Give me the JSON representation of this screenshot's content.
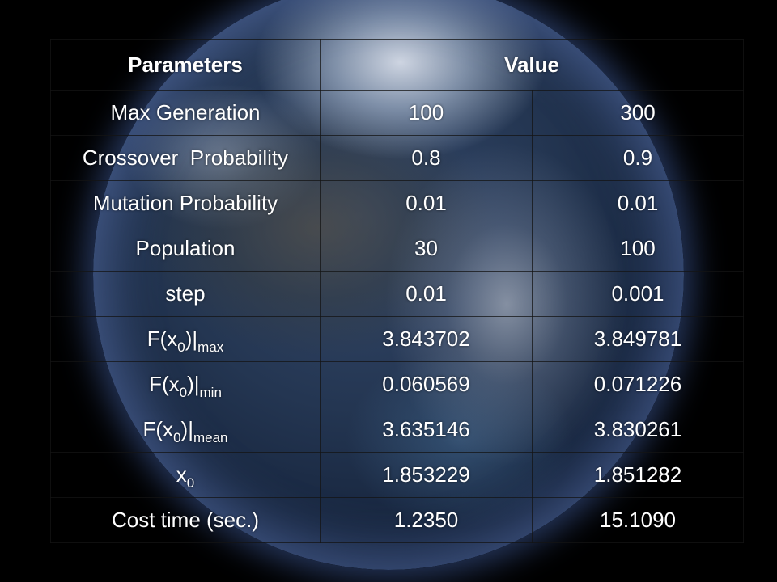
{
  "table": {
    "headers": {
      "parameters": "Parameters",
      "value": "Value"
    },
    "rows": [
      {
        "label": "Max Generation",
        "v1": "100",
        "v2": "300"
      },
      {
        "label": "Crossover  Probability",
        "v1": "0.8",
        "v2": "0.9"
      },
      {
        "label": "Mutation Probability",
        "v1": "0.01",
        "v2": "0.01"
      },
      {
        "label": "Population",
        "v1": "30",
        "v2": "100"
      },
      {
        "label": "step",
        "v1": "0.01",
        "v2": "0.001"
      },
      {
        "label_main": "F(x",
        "label_sub1": "0",
        "label_mid": ")|",
        "label_sub2": "max",
        "v1": "3.843702",
        "v2": "3.849781"
      },
      {
        "label_main": "F(x",
        "label_sub1": "0",
        "label_mid": ")|",
        "label_sub2": "min",
        "v1": "0.060569",
        "v2": "0.071226"
      },
      {
        "label_main": "F(x",
        "label_sub1": "0",
        "label_mid": ")|",
        "label_sub2": "mean",
        "v1": "3.635146",
        "v2": "3.830261"
      },
      {
        "label_main": "x",
        "label_sub1": "0",
        "v1": "1.853229",
        "v2": "1.851282"
      },
      {
        "label": "Cost time (sec.)",
        "v1": "1.2350",
        "v2": "15.1090"
      }
    ]
  }
}
